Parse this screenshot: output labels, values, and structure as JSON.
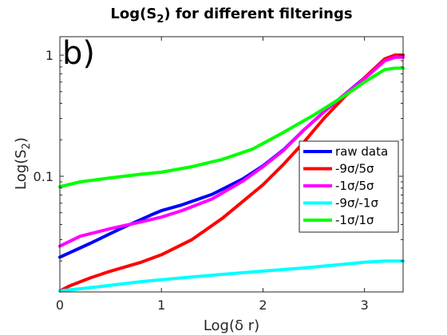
{
  "chart_data": {
    "type": "line",
    "title": "Log(S₂) for different filterings",
    "title_main": "Log(S",
    "title_sub": "2",
    "title_rest": ") for different filterings",
    "panel_tag": "b)",
    "xlabel": "Log(δ r)",
    "ylabel": "Log(S₂)",
    "ylabel_main": "Log(S",
    "ylabel_sub": "2",
    "ylabel_rest": ")",
    "xlim": [
      0,
      3.38
    ],
    "ylim": [
      0.0111,
      1.42
    ],
    "yscale": "log",
    "grid": false,
    "legend_position": "right",
    "xticks": [
      0,
      1,
      2,
      3
    ],
    "xtick_labels": [
      "0",
      "1",
      "2",
      "3"
    ],
    "yticks": [
      0.1,
      1
    ],
    "ytick_labels": [
      "0.1",
      "1"
    ],
    "series": [
      {
        "name": "raw data",
        "color": "#0000ff",
        "x": [
          0,
          0.3,
          0.6,
          0.9,
          1.0,
          1.2,
          1.5,
          1.8,
          2.0,
          2.2,
          2.4,
          2.6,
          2.8,
          3.0,
          3.2,
          3.3,
          3.38
        ],
        "y": [
          0.0215,
          0.028,
          0.037,
          0.048,
          0.052,
          0.058,
          0.071,
          0.095,
          0.122,
          0.165,
          0.24,
          0.34,
          0.47,
          0.65,
          0.93,
          1.0,
          1.0
        ]
      },
      {
        "name": "-9σ/5σ",
        "color": "#ff0000",
        "x": [
          0,
          0.1,
          0.3,
          0.5,
          0.8,
          1.0,
          1.3,
          1.6,
          2.0,
          2.2,
          2.4,
          2.6,
          2.8,
          3.0,
          3.2,
          3.3,
          3.38
        ],
        "y": [
          0.0113,
          0.0125,
          0.0145,
          0.0165,
          0.0195,
          0.0225,
          0.03,
          0.045,
          0.085,
          0.125,
          0.19,
          0.3,
          0.45,
          0.65,
          0.93,
          1.0,
          1.0
        ]
      },
      {
        "name": "-1σ/5σ",
        "color": "#ff00ff",
        "x": [
          0,
          0.2,
          0.5,
          0.8,
          1.0,
          1.2,
          1.5,
          1.8,
          2.0,
          2.2,
          2.4,
          2.6,
          2.8,
          3.0,
          3.2,
          3.3,
          3.38
        ],
        "y": [
          0.0265,
          0.032,
          0.037,
          0.042,
          0.046,
          0.052,
          0.065,
          0.091,
          0.12,
          0.163,
          0.24,
          0.34,
          0.47,
          0.64,
          0.9,
          0.96,
          0.96
        ]
      },
      {
        "name": "-9σ/-1σ",
        "color": "#00ffff",
        "x": [
          0,
          0.4,
          0.8,
          1.2,
          1.6,
          2.0,
          2.4,
          2.8,
          3.0,
          3.2,
          3.38
        ],
        "y": [
          0.0113,
          0.0123,
          0.0135,
          0.0145,
          0.0155,
          0.0165,
          0.0175,
          0.0188,
          0.0195,
          0.02,
          0.02
        ]
      },
      {
        "name": "-1σ/1σ",
        "color": "#00ff00",
        "x": [
          0,
          0.2,
          0.5,
          0.8,
          1.0,
          1.3,
          1.6,
          1.9,
          2.2,
          2.5,
          2.8,
          3.0,
          3.2,
          3.3,
          3.38
        ],
        "y": [
          0.082,
          0.09,
          0.097,
          0.104,
          0.108,
          0.12,
          0.138,
          0.168,
          0.23,
          0.32,
          0.46,
          0.6,
          0.76,
          0.78,
          0.78
        ]
      }
    ]
  }
}
